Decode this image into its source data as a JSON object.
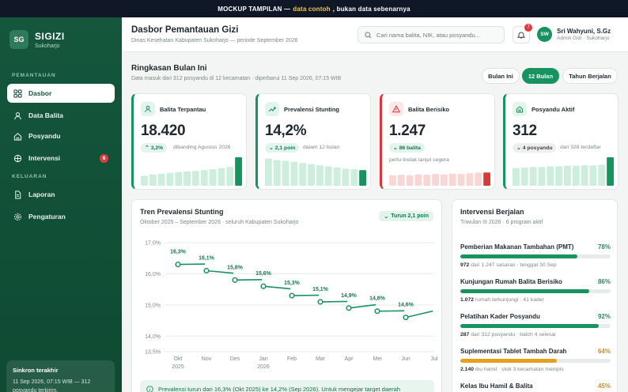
{
  "banner": {
    "prefix": "MOCKUP TAMPILAN —",
    "highlight": "data contoh",
    "suffix": ", bukan data sebenarnya"
  },
  "brand": {
    "logo": "SG",
    "name": "SIGIZI",
    "sub": "Sukoharjo"
  },
  "sidebar": {
    "section_main": "PEMANTAUAN",
    "section_other": "KELUARAN",
    "items": [
      {
        "label": "Dasbor",
        "icon": "dashboard-icon"
      },
      {
        "label": "Data Balita",
        "icon": "user-icon"
      },
      {
        "label": "Posyandu",
        "icon": "home-icon"
      },
      {
        "label": "Intervensi",
        "icon": "globe-icon",
        "badge": "6"
      },
      {
        "label": "Laporan",
        "icon": "document-icon"
      },
      {
        "label": "Pengaturan",
        "icon": "gear-icon"
      }
    ],
    "sync": {
      "title": "Sinkron terakhir",
      "text": "11 Sep 2026, 07:15 WIB — 312 posyandu terkirim."
    }
  },
  "header": {
    "title": "Dasbor Pemantauan Gizi",
    "subtitle": "Dinas Kesehatan Kabupaten Sukoharjo — periode September 2026",
    "search_placeholder": "Cari nama balita, NIK, atau posyandu...",
    "notif_count": "7",
    "user": {
      "initials": "SW",
      "name": "Sri Wahyuni, S.Gz",
      "role": "Admin Gizi · Sukoharjo"
    }
  },
  "summary": {
    "title": "Ringkasan Bulan Ini",
    "subtitle": "Data masuk dari 312 posyandu di 12 kecamatan · diperbarui 11 Sep 2026, 07:15 WIB",
    "periods": [
      "Bulan Ini",
      "12 Bulan",
      "Tahun Berjalan"
    ],
    "active_period": 1
  },
  "kpis": [
    {
      "label": "Balita Terpantau",
      "value": "18.420",
      "pill": "3,2%",
      "note": "dibanding Agustus 2026",
      "icon": "child-icon",
      "color": "#17935f",
      "spark": [
        0.35,
        0.4,
        0.42,
        0.45,
        0.48,
        0.5,
        0.52,
        0.55,
        0.58,
        0.62,
        0.66,
        1.0
      ]
    },
    {
      "label": "Prevalensi Stunting",
      "value": "14,2%",
      "pill": "2,1 poin",
      "note": "dalam 12 bulan",
      "icon": "trend-icon",
      "color": "#17935f",
      "spark": [
        0.95,
        0.9,
        0.88,
        0.84,
        0.8,
        0.76,
        0.72,
        0.68,
        0.64,
        0.6,
        0.58,
        0.55
      ]
    },
    {
      "label": "Balita Berisiko",
      "value": "1.247",
      "pill": "86 balita",
      "note": "",
      "note2": "perlu tindak lanjut segera",
      "icon": "warning-icon",
      "color": "#d63a3a",
      "spark": [
        0.55,
        0.58,
        0.55,
        0.6,
        0.58,
        0.62,
        0.6,
        0.64,
        0.62,
        0.66,
        0.68,
        0.7
      ]
    },
    {
      "label": "Posyandu Aktif",
      "value": "312",
      "pill": "4 posyandu",
      "note": "dari 328 terdaftar",
      "icon": "building-icon",
      "color": "#17935f",
      "spark": [
        0.62,
        0.64,
        0.66,
        0.66,
        0.68,
        0.68,
        0.7,
        0.7,
        0.72,
        0.72,
        0.74,
        1.0
      ]
    }
  ],
  "trend": {
    "title": "Tren Prevalensi Stunting",
    "subtitle": "Oktober 2025 – September 2026 · seluruh Kabupaten Sukoharjo",
    "badge": "Turun 2,1 poin",
    "note": "Prevalensi turun dari 16,3% (Okt 2025) ke 14,2% (Sep 2026). Untuk mengejar target daerah"
  },
  "chart_data": {
    "type": "line",
    "title": "Tren Prevalensi Stunting",
    "x": [
      "Okt",
      "Nov",
      "Des",
      "Jan",
      "Feb",
      "Mar",
      "Apr",
      "Mei",
      "Jun",
      "Jul"
    ],
    "x_sublabels": [
      "2025",
      "",
      "",
      "2026",
      "",
      "",
      "",
      "",
      "",
      ""
    ],
    "series": [
      {
        "values": [
          16.3,
          16.1,
          15.8,
          15.6,
          15.3,
          15.1,
          14.9,
          14.8,
          14.6,
          14.6
        ]
      }
    ],
    "point_labels": [
      "16,3%",
      "16,1%",
      "15,8%",
      "15,6%",
      "15,3%",
      "15,1%",
      "14,9%",
      "14,8%",
      "14,6%",
      ""
    ],
    "yticks": [
      17.0,
      16.0,
      15.0,
      14.0,
      13.5
    ],
    "ytick_labels": [
      "17,0%",
      "16,0%",
      "15,0%",
      "14,0%",
      "13,5%"
    ],
    "ylim": [
      13.5,
      17.0
    ],
    "grid": true,
    "color": "#17935f"
  },
  "interventions": {
    "title": "Intervensi Berjalan",
    "subtitle": "Triwulan III 2026 · 6 program aktif",
    "items": [
      {
        "name": "Pemberian Makanan Tambahan (PMT)",
        "pct": "78%",
        "fill": 0.78,
        "count": "972",
        "meta": "dari 1.247 sasaran  ·  tenggat 30 Sep",
        "color": "green"
      },
      {
        "name": "Kunjungan Rumah Balita Berisiko",
        "pct": "86%",
        "fill": 0.86,
        "count": "1.072",
        "meta": "rumah terkunjungi  ·  41 kader",
        "color": "green"
      },
      {
        "name": "Pelatihan Kader Posyandu",
        "pct": "92%",
        "fill": 0.92,
        "count": "287",
        "meta": "dari 312 posyandu  ·  batch 4 selesai",
        "color": "green"
      },
      {
        "name": "Suplementasi Tablet Tambah Darah",
        "pct": "64%",
        "fill": 0.64,
        "count": "2.140",
        "meta": "ibu hamil  ·  stok 3 kecamatan menipis",
        "color": "orange"
      },
      {
        "name": "Kelas Ibu Hamil & Balita",
        "pct": "45%",
        "fill": 0.45,
        "count": "",
        "meta": "",
        "color": "orange"
      }
    ]
  }
}
